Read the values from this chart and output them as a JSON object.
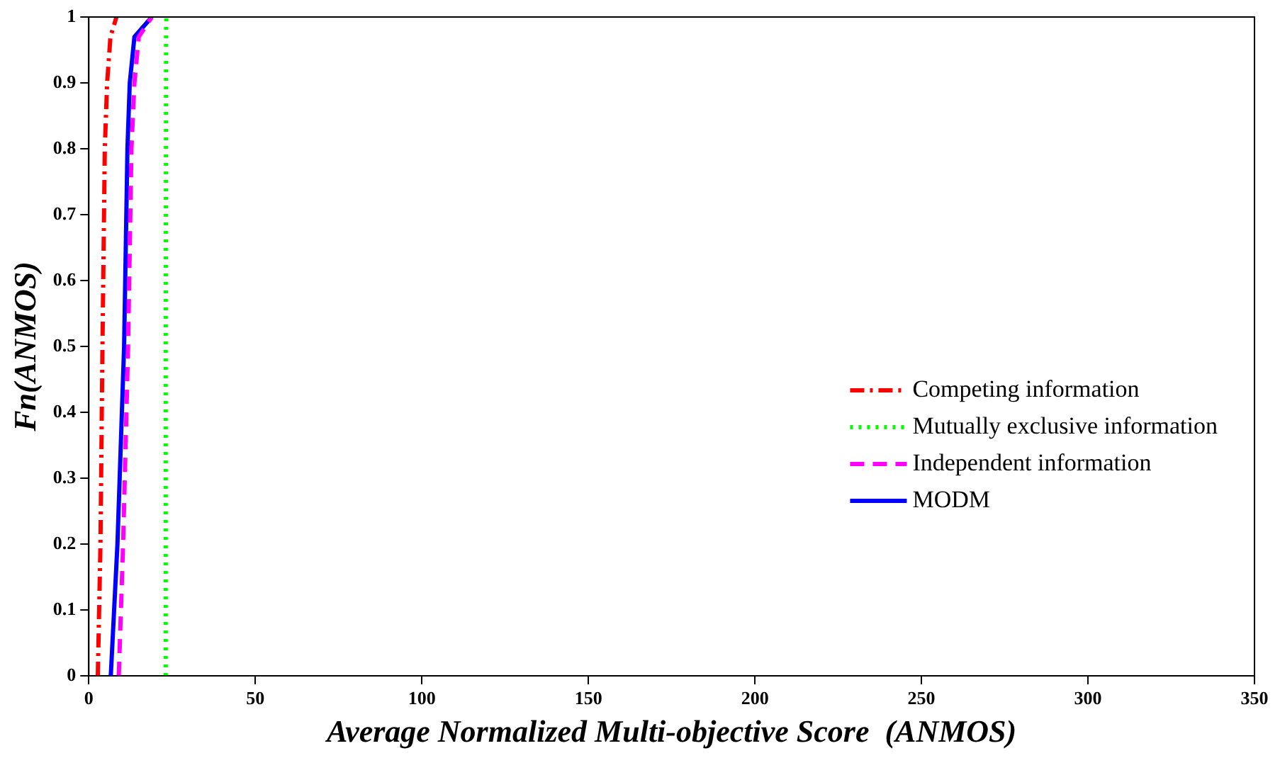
{
  "chart_data": {
    "type": "line",
    "xlabel": "Average Normalized Multi-objective Score  (ANMOS)",
    "ylabel": "Fn(ANMOS)",
    "xlim": [
      0,
      350
    ],
    "xticks": [
      0,
      50,
      100,
      150,
      200,
      250,
      300,
      350
    ],
    "ylim": [
      0,
      1
    ],
    "yticks": [
      0,
      0.1,
      0.2,
      0.3,
      0.4,
      0.5,
      0.6,
      0.7,
      0.8,
      0.9,
      1
    ],
    "grid": false,
    "legend": "right",
    "marker": "none",
    "series": [
      {
        "name": "Competing information",
        "color": "#ff0000",
        "line_style": "dashdot",
        "x": [
          2.7,
          3.5,
          4.1,
          4.8,
          5.5,
          6.5,
          8.3
        ],
        "values": [
          0,
          0.2,
          0.5,
          0.8,
          0.9,
          0.97,
          1
        ]
      },
      {
        "name": "Mutually exclusive information",
        "color": "#00ff00",
        "line_style": "dotted",
        "x": [
          23.1,
          23.1,
          23.2,
          23.3
        ],
        "values": [
          0,
          0.5,
          0.98,
          1
        ]
      },
      {
        "name": "Independent information",
        "color": "#ff00ff",
        "line_style": "dashed",
        "x": [
          9.0,
          10.3,
          11.8,
          12.8,
          13.7,
          15.0,
          18.9
        ],
        "values": [
          0,
          0.2,
          0.5,
          0.8,
          0.9,
          0.97,
          1
        ]
      },
      {
        "name": "MODM",
        "color": "#0000ff",
        "line_style": "solid",
        "x": [
          6.6,
          8.6,
          10.6,
          11.6,
          12.3,
          13.7,
          18.9
        ],
        "values": [
          0,
          0.2,
          0.5,
          0.8,
          0.9,
          0.97,
          1
        ]
      }
    ]
  }
}
